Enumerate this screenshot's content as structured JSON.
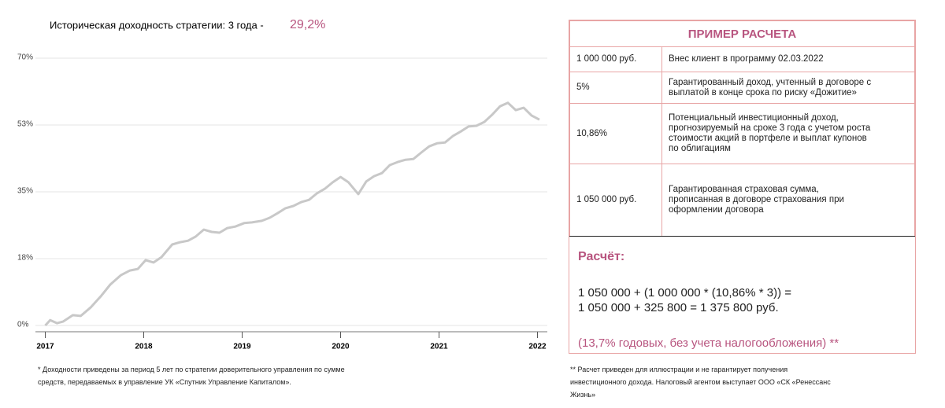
{
  "chart_data": {
    "type": "line",
    "title": "Историческая доходность стратегии:  3 года -",
    "title_highlight": "29,2%",
    "x": [
      2017.0,
      2017.05,
      2017.12,
      2017.18,
      2017.28,
      2017.36,
      2017.46,
      2017.57,
      2017.66,
      2017.77,
      2017.86,
      2017.94,
      2018.02,
      2018.1,
      2018.18,
      2018.29,
      2018.37,
      2018.45,
      2018.53,
      2018.61,
      2018.69,
      2018.77,
      2018.85,
      2018.93,
      2019.02,
      2019.1,
      2019.2,
      2019.28,
      2019.36,
      2019.44,
      2019.52,
      2019.6,
      2019.68,
      2019.76,
      2019.84,
      2019.92,
      2020.0,
      2020.08,
      2020.18,
      2020.26,
      2020.34,
      2020.42,
      2020.5,
      2020.58,
      2020.66,
      2020.74,
      2020.82,
      2020.9,
      2020.98,
      2021.06,
      2021.14,
      2021.22,
      2021.3,
      2021.38,
      2021.46,
      2021.54,
      2021.62,
      2021.7,
      2021.78,
      2021.86,
      2021.94,
      2022.02
    ],
    "series": [
      {
        "color": "#c8c8c8",
        "values": [
          0,
          1.4,
          0.6,
          1.0,
          2.7,
          2.5,
          4.7,
          7.8,
          10.7,
          13.2,
          14.4,
          14.8,
          17.1,
          16.5,
          17.9,
          21.2,
          21.8,
          22.2,
          23.3,
          25.1,
          24.5,
          24.3,
          25.5,
          25.9,
          26.8,
          27.0,
          27.4,
          28.2,
          29.4,
          30.7,
          31.3,
          32.3,
          32.9,
          34.6,
          35.8,
          37.5,
          38.9,
          37.5,
          34.4,
          37.7,
          39.1,
          39.9,
          42.0,
          42.8,
          43.4,
          43.6,
          45.3,
          46.9,
          47.7,
          47.9,
          49.6,
          50.8,
          52.1,
          52.3,
          53.3,
          55.2,
          57.4,
          58.3,
          56.4,
          57.0,
          55.0,
          53.9
        ]
      }
    ],
    "xlim": [
      2016.9,
      2022.1
    ],
    "xticks": [
      2017,
      2018,
      2019,
      2020,
      2021,
      2022
    ],
    "ylim": [
      0,
      70
    ],
    "yticks": [
      {
        "value": 0,
        "label": "0%"
      },
      {
        "value": 17.5,
        "label": "18%"
      },
      {
        "value": 35,
        "label": "35%"
      },
      {
        "value": 52.5,
        "label": "53%"
      },
      {
        "value": 70,
        "label": "70%"
      }
    ],
    "grid": true
  },
  "chart_footnote": [
    "* Доходности приведены за период 5 лет по стратегии доверительного управления по сумме",
    "средств,  передаваемых в управление УК «Спутник Управление Капиталом»."
  ],
  "calc_table": {
    "title": "ПРИМЕР РАСЧЕТА",
    "rows": [
      [
        "1 000 000 руб.",
        [
          "Внес клиент в программу 02.03.2022"
        ]
      ],
      [
        "5%",
        [
          "Гарантированный доход, учтенный в договоре с",
          "выплатой в конце срока по риску «Дожитие»"
        ]
      ],
      [
        "10,86%",
        [
          "Потенциальный инвестиционный доход,",
          "прогнозируемый на сроке 3 года с учетом роста",
          "стоимости акций в портфеле и выплат купонов",
          "по облигациям"
        ]
      ],
      [
        "1 050 000 руб.",
        [
          "Гарантированная страховая сумма,",
          "прописанная в договоре страхования при",
          "оформлении договора"
        ]
      ]
    ],
    "calc_title": "Расчёт:",
    "formula": [
      "1 050 000 + (1 000 000 * (10,86% * 3)) =",
      "1 050 000 + 325 800 = 1 375 800 руб."
    ],
    "result": "(13,7% годовых, без учета налогообложения) **"
  },
  "calc_footnote": [
    "** Расчет приведен для иллюстрации и не гарантирует получения",
    "инвестиционного дохода. Налоговый агентом выступает ООО «СК «Ренессанс",
    "Жизнь»"
  ]
}
